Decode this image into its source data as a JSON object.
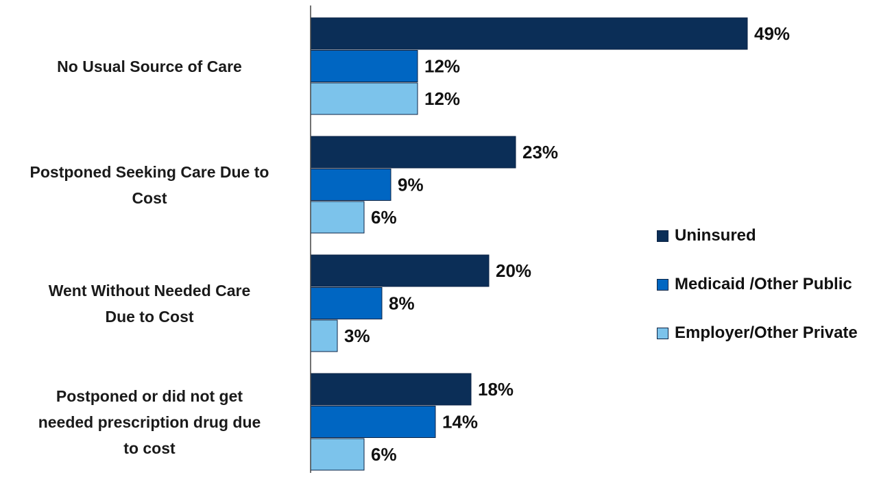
{
  "chart_data": {
    "type": "bar",
    "orientation": "horizontal",
    "categories": [
      "No Usual Source of Care",
      "Postponed Seeking Care Due to Cost",
      "Went Without Needed Care Due to Cost",
      "Postponed or did not get needed prescription drug due to cost"
    ],
    "category_lines": [
      [
        "No Usual Source of Care"
      ],
      [
        "Postponed Seeking Care Due to",
        "Cost"
      ],
      [
        "Went Without Needed Care",
        "Due to Cost"
      ],
      [
        "Postponed or did not get",
        "needed prescription drug due",
        "to cost"
      ]
    ],
    "series": [
      {
        "name": "Uninsured",
        "color": "#0b2e57",
        "values": [
          49,
          23,
          20,
          18
        ],
        "labels": [
          "49%",
          "23%",
          "20%",
          "18%"
        ]
      },
      {
        "name": "Medicaid /Other Public",
        "color": "#0066c2",
        "values": [
          12,
          9,
          8,
          14
        ],
        "labels": [
          "12%",
          "9%",
          "8%",
          "14%"
        ]
      },
      {
        "name": "Employer/Other Private",
        "color": "#7cc3eb",
        "values": [
          12,
          6,
          3,
          6
        ],
        "labels": [
          "12%",
          "6%",
          "3%",
          "6%"
        ]
      }
    ],
    "value_unit": "%",
    "xlim": [
      0,
      50
    ],
    "grid": false,
    "legend_position": "right"
  }
}
